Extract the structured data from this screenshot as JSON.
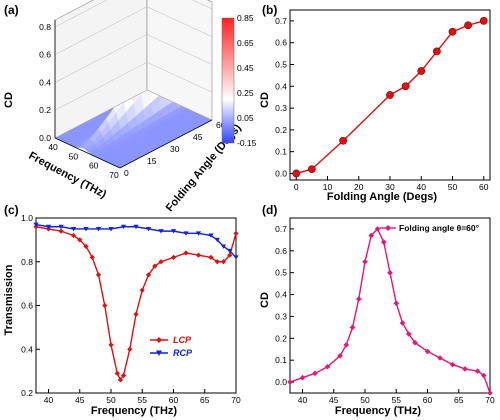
{
  "panels": {
    "a": {
      "label": "(a)",
      "chart_data": {
        "type": "surface",
        "zlabel": "CD",
        "xlabel": "Frequency (THz)",
        "ylabel": "Folding Angle (Degs)",
        "z_ticks": [
          "0.0",
          "0.2",
          "0.4",
          "0.6",
          "0.8"
        ],
        "x_ticks": [
          "40",
          "50",
          "60",
          "70"
        ],
        "y_ticks": [
          "0",
          "15",
          "30",
          "45",
          "60"
        ],
        "colorbar_ticks": [
          "0.85",
          "0.65",
          "0.45",
          "0.25",
          "0.05",
          "-0.15"
        ],
        "colorbar_range": [
          -0.15,
          0.85
        ],
        "x_range": [
          38,
          70
        ],
        "y_range": [
          0,
          60
        ],
        "z_range": [
          0,
          0.85
        ],
        "colors": {
          "low": "#3344ff",
          "mid": "#ffffff",
          "high": "#ff2222"
        }
      }
    },
    "b": {
      "label": "(b)",
      "chart_data": {
        "type": "line",
        "xlabel": "Folding Angle (Degs)",
        "ylabel": "CD",
        "x": [
          0,
          5,
          15,
          30,
          35,
          40,
          45,
          50,
          55,
          60
        ],
        "y": [
          0.0,
          0.02,
          0.15,
          0.36,
          0.4,
          0.47,
          0.56,
          0.65,
          0.68,
          0.7
        ],
        "xlim": [
          -2,
          62
        ],
        "ylim": [
          -0.03,
          0.75
        ],
        "x_ticks": [
          "0",
          "10",
          "20",
          "30",
          "40",
          "50",
          "60"
        ],
        "y_ticks": [
          "0.0",
          "0.1",
          "0.2",
          "0.3",
          "0.4",
          "0.5",
          "0.6",
          "0.7"
        ],
        "color": "#dd1111"
      }
    },
    "c": {
      "label": "(c)",
      "chart_data": {
        "type": "line",
        "xlabel": "Frequency (THz)",
        "ylabel": "Transmission",
        "xlim": [
          38,
          70
        ],
        "ylim": [
          0.2,
          1.0
        ],
        "x_ticks": [
          "40",
          "45",
          "50",
          "55",
          "60",
          "65",
          "70"
        ],
        "y_ticks": [
          "0.2",
          "0.4",
          "0.6",
          "0.8",
          "1.0"
        ],
        "series": [
          {
            "name": "LCP",
            "color": "#dd1111",
            "x": [
              38,
              40,
              42,
              44,
              45,
              46,
              47,
              48,
              49,
              50,
              51,
              51.5,
              52,
              53,
              54,
              55,
              56,
              57,
              58,
              60,
              62,
              64,
              66,
              67,
              68,
              69,
              70
            ],
            "y": [
              0.96,
              0.95,
              0.94,
              0.92,
              0.9,
              0.87,
              0.82,
              0.74,
              0.6,
              0.42,
              0.29,
              0.26,
              0.28,
              0.4,
              0.56,
              0.67,
              0.74,
              0.78,
              0.8,
              0.82,
              0.84,
              0.83,
              0.82,
              0.8,
              0.8,
              0.83,
              0.93
            ]
          },
          {
            "name": "RCP",
            "color": "#1122dd",
            "x": [
              38,
              40,
              42,
              44,
              46,
              48,
              50,
              52,
              54,
              56,
              58,
              60,
              62,
              64,
              66,
              67,
              68,
              69,
              70
            ],
            "y": [
              0.97,
              0.96,
              0.96,
              0.95,
              0.95,
              0.95,
              0.95,
              0.96,
              0.96,
              0.95,
              0.94,
              0.94,
              0.93,
              0.93,
              0.92,
              0.9,
              0.87,
              0.85,
              0.82
            ]
          }
        ],
        "legend_position": "bottom-right"
      }
    },
    "d": {
      "label": "(d)",
      "chart_data": {
        "type": "line",
        "xlabel": "Frequency (THz)",
        "ylabel": "CD",
        "xlim": [
          38,
          70
        ],
        "ylim": [
          -0.05,
          0.75
        ],
        "x_ticks": [
          "40",
          "45",
          "50",
          "55",
          "60",
          "65",
          "70"
        ],
        "y_ticks": [
          "0.0",
          "0.1",
          "0.2",
          "0.3",
          "0.4",
          "0.5",
          "0.6",
          "0.7"
        ],
        "series": [
          {
            "name": "Folding angle θ=60°",
            "color": "#e8157a",
            "x": [
              38,
              40,
              42,
              44,
              46,
              47,
              48,
              49,
              50,
              51,
              52,
              53,
              54,
              55,
              56,
              57,
              58,
              60,
              62,
              64,
              66,
              68,
              69,
              70
            ],
            "y": [
              0.0,
              0.02,
              0.04,
              0.07,
              0.12,
              0.17,
              0.25,
              0.38,
              0.55,
              0.67,
              0.7,
              0.64,
              0.5,
              0.36,
              0.27,
              0.22,
              0.18,
              0.14,
              0.11,
              0.08,
              0.06,
              0.05,
              0.03,
              -0.05
            ]
          }
        ],
        "legend_position": "top-right"
      }
    }
  }
}
